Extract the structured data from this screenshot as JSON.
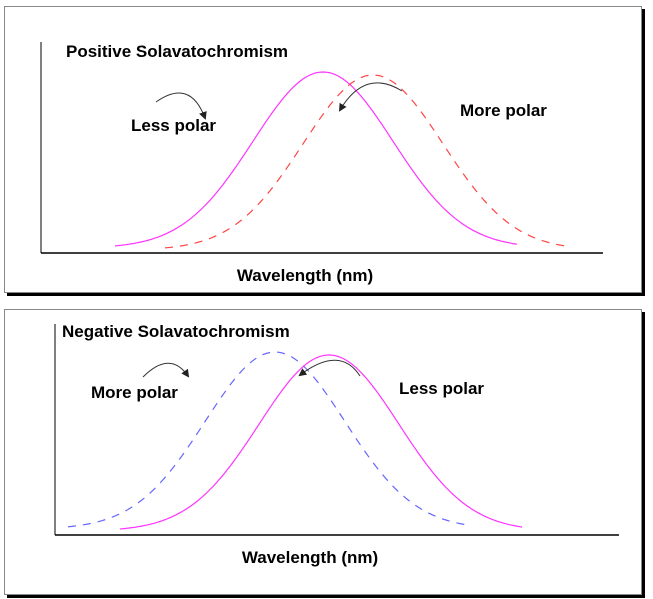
{
  "panels": [
    {
      "title": "Positive Solavatochromism",
      "xlabel": "Wavelength (nm)",
      "label_left": "Less polar",
      "label_right": "More polar",
      "solid_curve_color": "#ff33ff",
      "dashed_curve_color": "#ff4444"
    },
    {
      "title": "Negative Solavatochromism",
      "xlabel": "Wavelength (nm)",
      "label_left": "More polar",
      "label_right": "Less polar",
      "solid_curve_color": "#ff33ff",
      "dashed_curve_color": "#6666ff"
    }
  ]
}
